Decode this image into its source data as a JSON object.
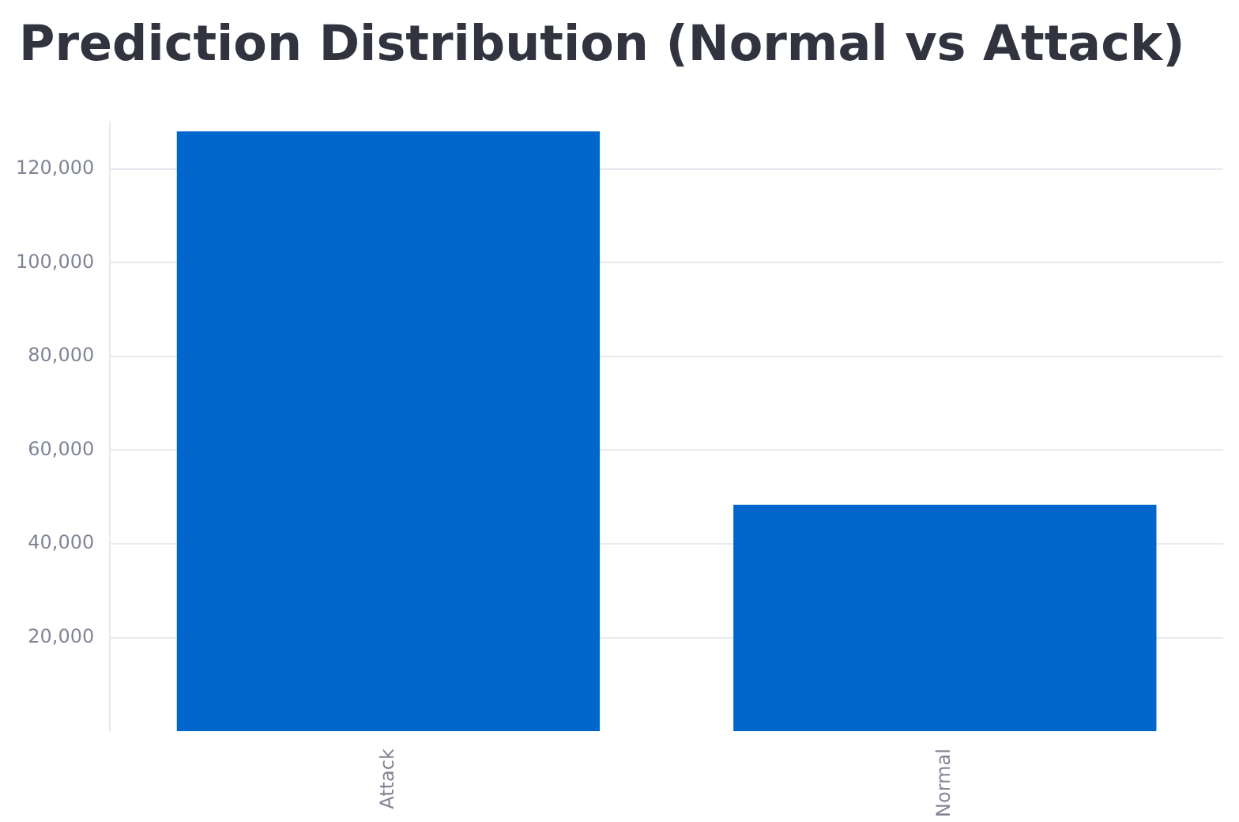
{
  "chart_data": {
    "type": "bar",
    "title": "Prediction Distribution (Normal vs Attack)",
    "categories": [
      "Attack",
      "Normal"
    ],
    "values": [
      128000,
      48300
    ],
    "color": "#0066cc",
    "ylim": [
      0,
      130000
    ],
    "yticks": [
      {
        "value": 20000,
        "label": "20,000"
      },
      {
        "value": 40000,
        "label": "40,000"
      },
      {
        "value": 60000,
        "label": "60,000"
      },
      {
        "value": 80000,
        "label": "80,000"
      },
      {
        "value": 100000,
        "label": "100,000"
      },
      {
        "value": 120000,
        "label": "120,000"
      }
    ],
    "grid": "y"
  }
}
